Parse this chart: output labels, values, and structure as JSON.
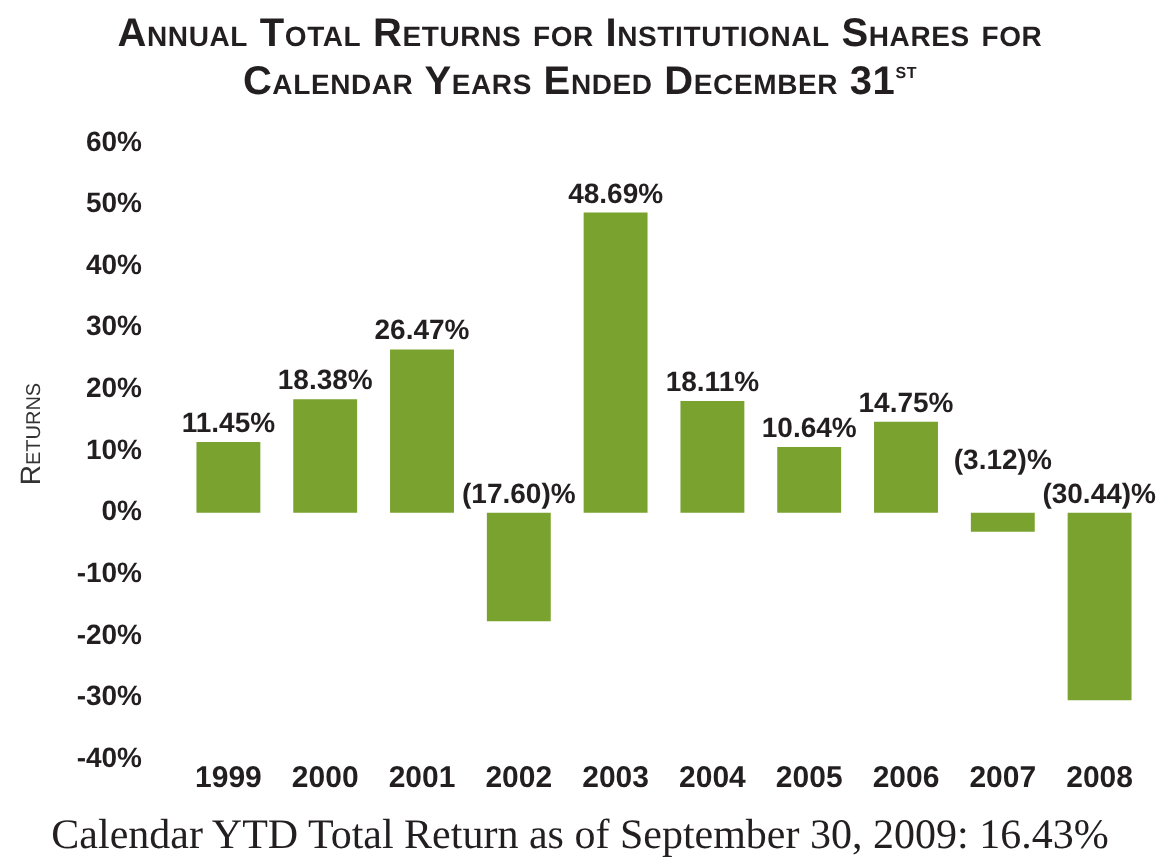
{
  "chart_data": {
    "type": "bar",
    "title": "Annual Total Returns for Institutional Shares for Calendar Years Ended December 31$^{st}$",
    "ylabel": "Returns",
    "categories": [
      "1999",
      "2000",
      "2001",
      "2002",
      "2003",
      "2004",
      "2005",
      "2006",
      "2007",
      "2008"
    ],
    "values": [
      11.45,
      18.38,
      26.47,
      -17.6,
      48.69,
      18.11,
      10.64,
      14.75,
      -3.12,
      -30.44
    ],
    "value_labels": [
      "11.45%",
      "18.38%",
      "26.47%",
      "(17.60)%",
      "48.69%",
      "18.11%",
      "10.64%",
      "14.75%",
      "(3.12)%",
      "(30.44)%"
    ],
    "color": "#7aa22f",
    "ylim": [
      -40,
      60
    ],
    "yticks": [
      {
        "value": -40,
        "label": "-40%"
      },
      {
        "value": -30,
        "label": "-30%"
      },
      {
        "value": -20,
        "label": "-20%"
      },
      {
        "value": -10,
        "label": "-10%"
      },
      {
        "value": 0,
        "label": "0%"
      },
      {
        "value": 10,
        "label": "10%"
      },
      {
        "value": 20,
        "label": "20%"
      },
      {
        "value": 30,
        "label": "30%"
      },
      {
        "value": 40,
        "label": "40%"
      },
      {
        "value": 50,
        "label": "50%"
      },
      {
        "value": 60,
        "label": "60%"
      }
    ],
    "grid": false,
    "legend": false,
    "annotations": [
      "Calendar YTD Total Return as of September 30, 2009: 16.43%"
    ]
  }
}
